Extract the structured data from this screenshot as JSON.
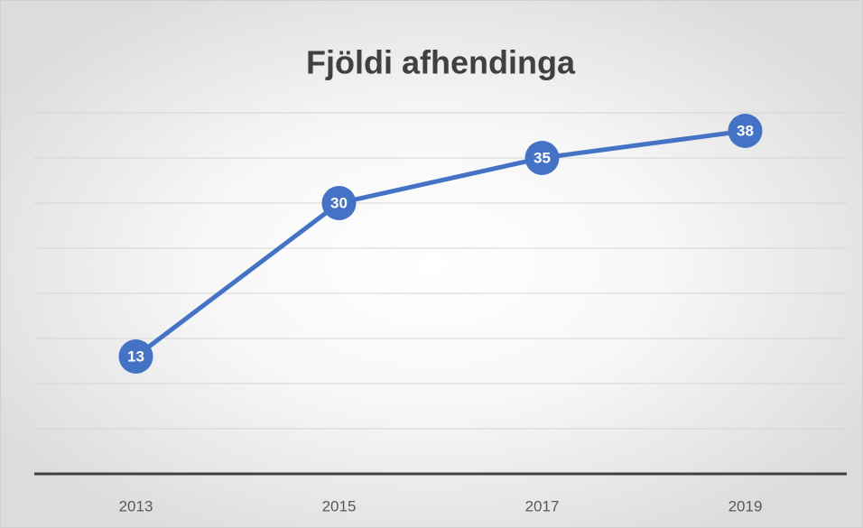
{
  "chart_data": {
    "type": "line",
    "title": "Fjöldi afhendinga",
    "categories": [
      "2013",
      "2015",
      "2017",
      "2019"
    ],
    "values": [
      13,
      30,
      35,
      38
    ],
    "color": "#4472c4",
    "ylim": [
      0,
      40
    ],
    "yticks": [
      0,
      5,
      10,
      15,
      20,
      25,
      30,
      35,
      40
    ],
    "grid": true
  }
}
